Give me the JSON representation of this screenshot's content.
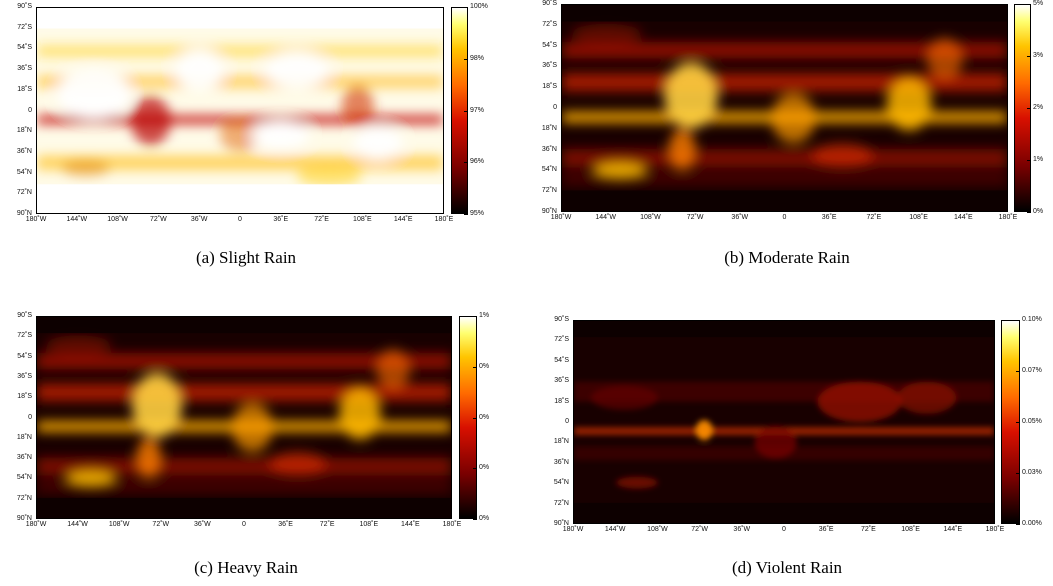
{
  "chart_data": [
    {
      "type": "heatmap",
      "caption": "(a) Slight Rain",
      "theme": "bright",
      "y_ticks": [
        "90˚S",
        "72˚S",
        "54˚S",
        "36˚S",
        "18˚S",
        "0",
        "18˚N",
        "36˚N",
        "54˚N",
        "72˚N",
        "90˚N"
      ],
      "x_ticks": [
        "180˚W",
        "144˚W",
        "108˚W",
        "72˚W",
        "36˚W",
        "0",
        "36˚E",
        "72˚E",
        "108˚E",
        "144˚E",
        "180˚E"
      ],
      "colorbar_ticks": [
        "95%",
        "96%",
        "97%",
        "98%",
        "100%"
      ],
      "colorbar_range": [
        95,
        100
      ],
      "colormap": "hot"
    },
    {
      "type": "heatmap",
      "caption": "(b) Moderate Rain",
      "theme": "dark",
      "y_ticks": [
        "90˚S",
        "72˚S",
        "54˚S",
        "36˚S",
        "18˚S",
        "0",
        "18˚N",
        "36˚N",
        "54˚N",
        "72˚N",
        "90˚N"
      ],
      "x_ticks": [
        "180˚W",
        "144˚W",
        "108˚W",
        "72˚W",
        "36˚W",
        "0",
        "36˚E",
        "72˚E",
        "108˚E",
        "144˚E",
        "180˚E"
      ],
      "colorbar_ticks": [
        "0%",
        "1%",
        "2%",
        "3%",
        "5%"
      ],
      "colorbar_range": [
        0,
        5
      ],
      "colormap": "hot"
    },
    {
      "type": "heatmap",
      "caption": "(c) Heavy Rain",
      "theme": "dark",
      "y_ticks": [
        "90˚S",
        "72˚S",
        "54˚S",
        "36˚S",
        "18˚S",
        "0",
        "18˚N",
        "36˚N",
        "54˚N",
        "72˚N",
        "90˚N"
      ],
      "x_ticks": [
        "180˚W",
        "144˚W",
        "108˚W",
        "72˚W",
        "36˚W",
        "0",
        "36˚E",
        "72˚E",
        "108˚E",
        "144˚E",
        "180˚E"
      ],
      "colorbar_ticks": [
        "0%",
        "0%",
        "0%",
        "0%",
        "1%"
      ],
      "colorbar_range": [
        0,
        1
      ],
      "colormap": "hot"
    },
    {
      "type": "heatmap",
      "caption": "(d) Violent Rain",
      "theme": "sparse",
      "y_ticks": [
        "90˚S",
        "72˚S",
        "54˚S",
        "36˚S",
        "18˚S",
        "0",
        "18˚N",
        "36˚N",
        "54˚N",
        "72˚N",
        "90˚N"
      ],
      "x_ticks": [
        "180˚W",
        "144˚W",
        "108˚W",
        "72˚W",
        "36˚W",
        "0",
        "36˚E",
        "72˚E",
        "108˚E",
        "144˚E",
        "180˚E"
      ],
      "colorbar_ticks": [
        "0.00%",
        "0.03%",
        "0.05%",
        "0.07%",
        "0.10%"
      ],
      "colorbar_range": [
        0,
        0.1
      ],
      "colormap": "hot"
    }
  ]
}
